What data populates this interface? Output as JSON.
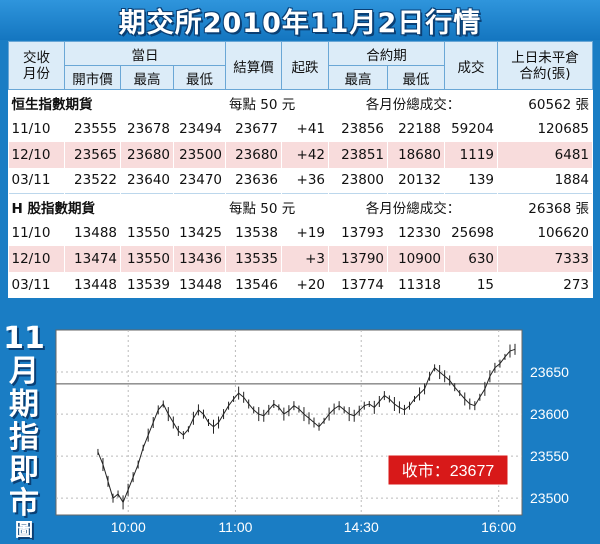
{
  "title": "期交所2010年11月2日行情",
  "headers": {
    "col_month": "交收\n月份",
    "day_group": "當日",
    "open": "開市價",
    "high": "最高",
    "low": "最低",
    "settle": "結算價",
    "change": "起跌",
    "contract_group": "合約期",
    "c_high": "最高",
    "c_low": "最低",
    "volume": "成交",
    "oi": "上日未平倉\n合約(張)"
  },
  "sections": [
    {
      "name": "恒生指數期貨",
      "per_point": "每點 50 元",
      "total_label": "各月份總成交：",
      "total": "60562 張",
      "rows": [
        {
          "month": "11/10",
          "open": "23555",
          "high": "23678",
          "low": "23494",
          "settle": "23677",
          "change": "+41",
          "c_high": "23856",
          "c_low": "22188",
          "volume": "59204",
          "oi": "120685"
        },
        {
          "month": "12/10",
          "open": "23565",
          "high": "23680",
          "low": "23500",
          "settle": "23680",
          "change": "+42",
          "c_high": "23851",
          "c_low": "18680",
          "volume": "1119",
          "oi": "6481"
        },
        {
          "month": "03/11",
          "open": "23522",
          "high": "23640",
          "low": "23470",
          "settle": "23636",
          "change": "+36",
          "c_high": "23800",
          "c_low": "20132",
          "volume": "139",
          "oi": "1884"
        }
      ]
    },
    {
      "name": "H 股指數期貨",
      "per_point": "每點 50 元",
      "total_label": "各月份總成交：",
      "total": "26368 張",
      "rows": [
        {
          "month": "11/10",
          "open": "13488",
          "high": "13550",
          "low": "13425",
          "settle": "13538",
          "change": "+19",
          "c_high": "13793",
          "c_low": "12330",
          "volume": "25698",
          "oi": "106620"
        },
        {
          "month": "12/10",
          "open": "13474",
          "high": "13550",
          "low": "13436",
          "settle": "13535",
          "change": "+3",
          "c_high": "13790",
          "c_low": "10900",
          "volume": "630",
          "oi": "7333"
        },
        {
          "month": "03/11",
          "open": "13448",
          "high": "13539",
          "low": "13448",
          "settle": "13546",
          "change": "+20",
          "c_high": "13774",
          "c_low": "11318",
          "volume": "15",
          "oi": "273"
        }
      ]
    }
  ],
  "side_label": [
    "11",
    "月",
    "期",
    "指",
    "即",
    "市",
    "圖"
  ],
  "chart_data": {
    "type": "line",
    "x_ticks": [
      "10:00",
      "11:00",
      "14:30",
      "16:00"
    ],
    "y_ticks": [
      23500,
      23550,
      23600,
      23650
    ],
    "ylim": [
      23480,
      23700
    ],
    "reference_line": 23636,
    "close_label": "收市：23677",
    "series": [
      {
        "values": [
          23555,
          23540,
          23520,
          23500,
          23505,
          23495,
          23510,
          23525,
          23540,
          23560,
          23575,
          23590,
          23605,
          23612,
          23600,
          23590,
          23580,
          23575,
          23582,
          23595,
          23605,
          23600,
          23590,
          23585,
          23590,
          23600,
          23610,
          23618,
          23625,
          23620,
          23612,
          23605,
          23600,
          23598,
          23605,
          23612,
          23608,
          23600,
          23604,
          23610,
          23606,
          23600,
          23595,
          23590,
          23585,
          23592,
          23600,
          23606,
          23610,
          23605,
          23600,
          23598,
          23604,
          23610,
          23612,
          23608,
          23615,
          23622,
          23618,
          23612,
          23608,
          23605,
          23610,
          23618,
          23624,
          23630,
          23645,
          23655,
          23650,
          23645,
          23640,
          23632,
          23625,
          23618,
          23612,
          23610,
          23620,
          23630,
          23645,
          23655,
          23660,
          23668,
          23675,
          23677
        ]
      }
    ]
  }
}
